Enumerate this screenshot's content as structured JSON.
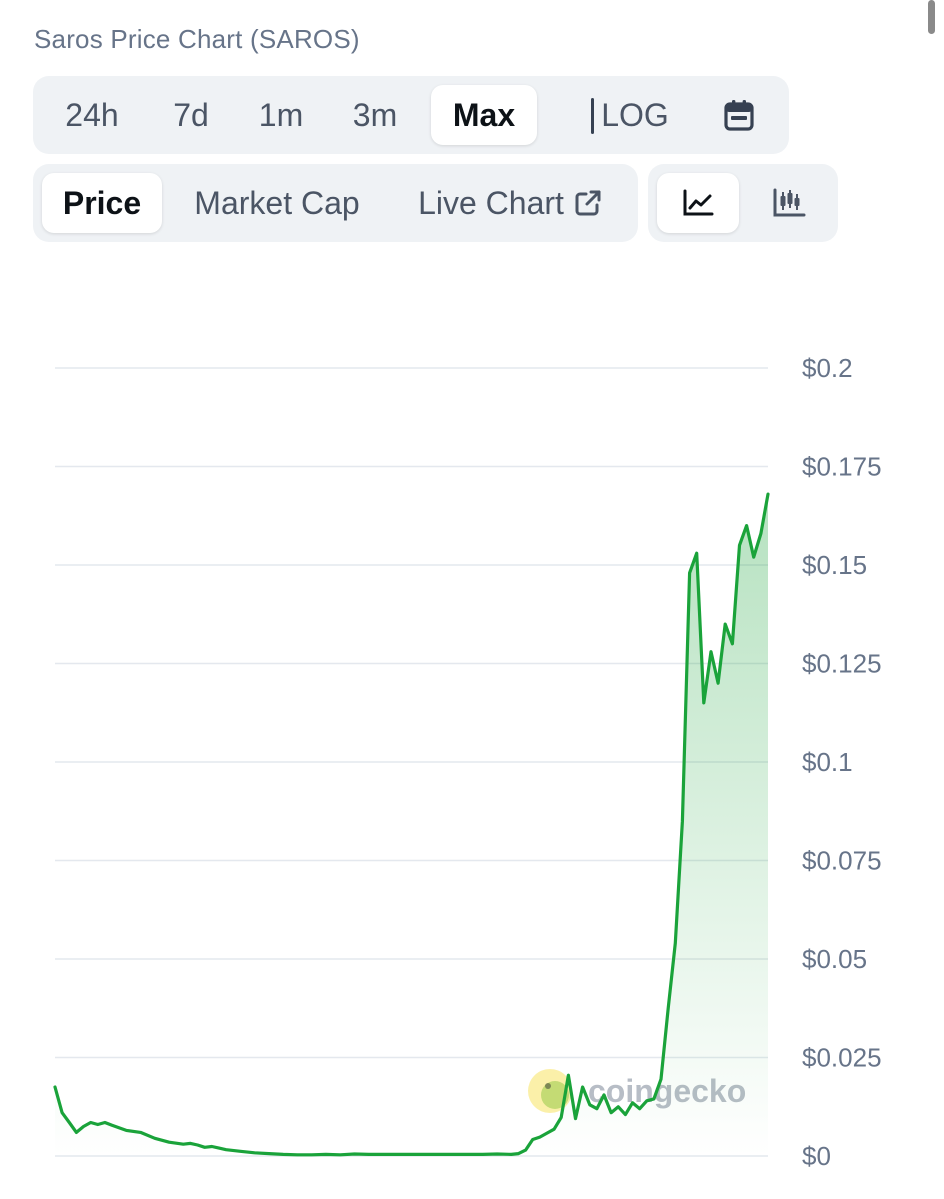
{
  "title": "Saros Price Chart (SAROS)",
  "range_tabs": [
    {
      "label": "24h",
      "active": false
    },
    {
      "label": "7d",
      "active": false
    },
    {
      "label": "1m",
      "active": false
    },
    {
      "label": "3m",
      "active": false
    },
    {
      "label": "Max",
      "active": true
    }
  ],
  "scale_toggle": "LOG",
  "view_tabs": [
    {
      "label": "Price",
      "active": true
    },
    {
      "label": "Market Cap",
      "active": false
    },
    {
      "label": "Live Chart",
      "active": false
    }
  ],
  "chart_type_buttons": [
    {
      "icon": "line-chart-icon",
      "active": true
    },
    {
      "icon": "candlestick-icon",
      "active": false
    }
  ],
  "icons": {
    "calendar": "calendar-icon",
    "external_link": "external-link-icon"
  },
  "colors": {
    "line": "#1aa33a",
    "fill_top": "#b8e5c4",
    "grid": "#e4e8ee",
    "tab_bg": "#eff2f5"
  },
  "chart_data": {
    "type": "area",
    "title": "",
    "xlabel": "",
    "ylabel": "",
    "ylim": [
      0,
      0.2
    ],
    "y_ticks": [
      0.2,
      0.175,
      0.15,
      0.125,
      0.1,
      0.075,
      0.05,
      0.025,
      0
    ],
    "y_tick_labels": [
      "$0.2",
      "$0.175",
      "$0.15",
      "$0.125",
      "$0.1",
      "$0.075",
      "$0.05",
      "$0.025",
      "$0"
    ],
    "grid": true,
    "series": [
      {
        "x": [
          0,
          1,
          2,
          3,
          4,
          5,
          6,
          7,
          8,
          10,
          12,
          14,
          16,
          18,
          19,
          20,
          21,
          22,
          23,
          24,
          26,
          28,
          30,
          32,
          34,
          36,
          38,
          40,
          42,
          44,
          46,
          48,
          50,
          52,
          54,
          56,
          58,
          60,
          62,
          64,
          65,
          66,
          67,
          68,
          69,
          70,
          71,
          72,
          73,
          74,
          75,
          76,
          77,
          78,
          79,
          80,
          81,
          82,
          83,
          84,
          85,
          86,
          87,
          88,
          89,
          90,
          91,
          92,
          93,
          94,
          95,
          96,
          97,
          98,
          99,
          100
        ],
        "values": [
          0.0175,
          0.011,
          0.0085,
          0.006,
          0.0075,
          0.0085,
          0.008,
          0.0085,
          0.0078,
          0.0065,
          0.006,
          0.0045,
          0.0035,
          0.003,
          0.0032,
          0.0028,
          0.0022,
          0.0024,
          0.002,
          0.0016,
          0.0012,
          0.0008,
          0.0006,
          0.0004,
          0.0003,
          0.0003,
          0.0004,
          0.0003,
          0.0005,
          0.0004,
          0.0004,
          0.0004,
          0.0004,
          0.0004,
          0.0004,
          0.0004,
          0.0004,
          0.0004,
          0.0005,
          0.0004,
          0.0006,
          0.0015,
          0.0042,
          0.0048,
          0.0058,
          0.0068,
          0.0098,
          0.0205,
          0.0095,
          0.0175,
          0.013,
          0.012,
          0.0155,
          0.011,
          0.0125,
          0.0105,
          0.0135,
          0.012,
          0.014,
          0.0145,
          0.0195,
          0.0375,
          0.054,
          0.085,
          0.148,
          0.153,
          0.115,
          0.128,
          0.12,
          0.135,
          0.13,
          0.155,
          0.16,
          0.152,
          0.158,
          0.168
        ]
      }
    ],
    "watermark": "coingecko"
  }
}
